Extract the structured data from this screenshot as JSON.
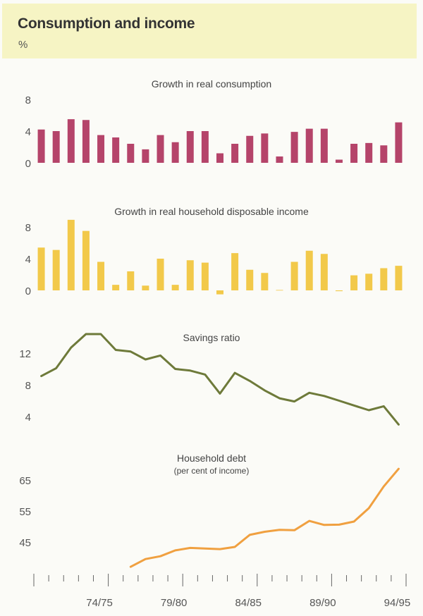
{
  "title": "Consumption and income",
  "unit": "%",
  "colors": {
    "consumption": "#b5446a",
    "income": "#f2c94a",
    "savings": "#6e7a3a",
    "debt": "#f0a040",
    "header_bg": "#f6f4c4",
    "axis": "#666666"
  },
  "chart_data": [
    {
      "type": "bar",
      "title": "Growth in real consumption",
      "yticks": [
        0,
        4,
        8
      ],
      "ylim": [
        0,
        8
      ],
      "categories": [
        "70/71",
        "71/72",
        "72/73",
        "73/74",
        "74/75",
        "75/76",
        "76/77",
        "77/78",
        "78/79",
        "79/80",
        "80/81",
        "81/82",
        "82/83",
        "83/84",
        "84/85",
        "85/86",
        "86/87",
        "87/88",
        "88/89",
        "89/90",
        "90/91",
        "91/92",
        "92/93",
        "93/94",
        "94/95"
      ],
      "values": [
        4.2,
        4.0,
        5.5,
        5.4,
        3.5,
        3.2,
        2.4,
        1.7,
        3.5,
        2.6,
        4.0,
        4.0,
        1.2,
        2.4,
        3.4,
        3.7,
        0.8,
        3.9,
        4.3,
        4.3,
        0.4,
        2.4,
        2.5,
        2.2,
        5.1
      ]
    },
    {
      "type": "bar",
      "title": "Growth in real household disposable income",
      "yticks": [
        0,
        4,
        8
      ],
      "ylim": [
        -1,
        9
      ],
      "categories": [
        "70/71",
        "71/72",
        "72/73",
        "73/74",
        "74/75",
        "75/76",
        "76/77",
        "77/78",
        "78/79",
        "79/80",
        "80/81",
        "81/82",
        "82/83",
        "83/84",
        "84/85",
        "85/86",
        "86/87",
        "87/88",
        "88/89",
        "89/90",
        "90/91",
        "91/92",
        "92/93",
        "93/94",
        "94/95"
      ],
      "values": [
        5.4,
        5.1,
        8.9,
        7.5,
        3.6,
        0.7,
        2.4,
        0.6,
        4.0,
        0.7,
        3.8,
        3.5,
        -0.5,
        4.7,
        2.6,
        2.2,
        0.05,
        3.6,
        5.0,
        4.6,
        -0.1,
        1.9,
        2.1,
        2.8,
        3.1
      ]
    },
    {
      "type": "line",
      "title": "Savings ratio",
      "yticks": [
        4,
        8,
        12
      ],
      "ylim": [
        2,
        15
      ],
      "categories": [
        "70/71",
        "71/72",
        "72/73",
        "73/74",
        "74/75",
        "75/76",
        "76/77",
        "77/78",
        "78/79",
        "79/80",
        "80/81",
        "81/82",
        "82/83",
        "83/84",
        "84/85",
        "85/86",
        "86/87",
        "87/88",
        "88/89",
        "89/90",
        "90/91",
        "91/92",
        "92/93",
        "93/94",
        "94/95"
      ],
      "values": [
        9.1,
        10.1,
        12.7,
        14.4,
        14.4,
        12.4,
        12.2,
        11.2,
        11.7,
        10.0,
        9.8,
        9.3,
        6.9,
        9.5,
        8.5,
        7.3,
        6.3,
        5.9,
        7.0,
        6.6,
        6.0,
        5.4,
        4.8,
        5.3,
        3.0
      ]
    },
    {
      "type": "line",
      "title": "Household debt",
      "subtitle": "(per cent of income)",
      "yticks": [
        45,
        55,
        65
      ],
      "ylim": [
        36,
        70
      ],
      "categories": [
        "76/77",
        "77/78",
        "78/79",
        "79/80",
        "80/81",
        "81/82",
        "82/83",
        "83/84",
        "84/85",
        "85/86",
        "86/87",
        "87/88",
        "88/89",
        "89/90",
        "90/91",
        "91/92",
        "92/93",
        "93/94",
        "94/95"
      ],
      "values": [
        37.0,
        39.5,
        40.4,
        42.3,
        43.1,
        42.9,
        42.7,
        43.4,
        47.3,
        48.3,
        48.9,
        48.8,
        51.8,
        50.5,
        50.6,
        51.6,
        55.9,
        62.9,
        68.6
      ]
    }
  ],
  "x_axis": {
    "labels": [
      "74/75",
      "79/80",
      "84/85",
      "89/90",
      "94/95"
    ],
    "n_periods": 25
  }
}
